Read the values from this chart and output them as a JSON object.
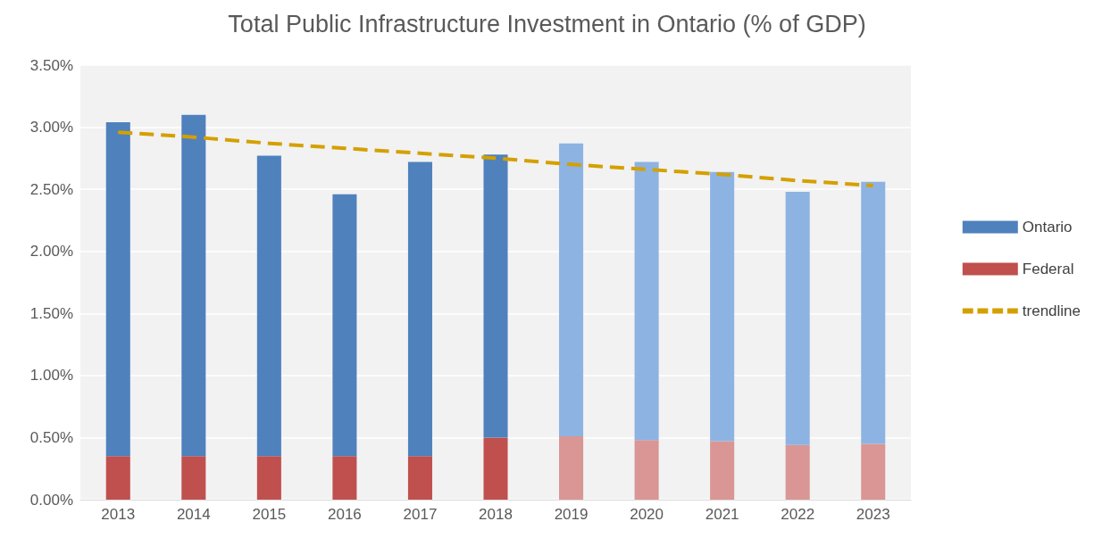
{
  "chart_data": {
    "type": "bar",
    "title": "Total Public Infrastructure Investment in Ontario (% of GDP)",
    "categories": [
      "2013",
      "2014",
      "2015",
      "2016",
      "2017",
      "2018",
      "2019",
      "2020",
      "2021",
      "2022",
      "2023"
    ],
    "stacked": true,
    "series": [
      {
        "name": "Federal",
        "color": "#c0504d",
        "colors": [
          "#c0504d",
          "#c0504d",
          "#c0504d",
          "#c0504d",
          "#c0504d",
          "#c0504d",
          "#d99694",
          "#d99694",
          "#d99694",
          "#d99694",
          "#d99694"
        ],
        "values": [
          0.35,
          0.35,
          0.35,
          0.35,
          0.35,
          0.5,
          0.51,
          0.48,
          0.47,
          0.44,
          0.45
        ]
      },
      {
        "name": "Ontario",
        "color": "#4f81bd",
        "colors": [
          "#4f81bd",
          "#4f81bd",
          "#4f81bd",
          "#4f81bd",
          "#4f81bd",
          "#4f81bd",
          "#8db3e2",
          "#8db3e2",
          "#8db3e2",
          "#8db3e2",
          "#8db3e2"
        ],
        "values": [
          2.69,
          2.75,
          2.42,
          2.11,
          2.37,
          2.28,
          2.36,
          2.24,
          2.17,
          2.04,
          2.11
        ]
      },
      {
        "name": "trendline",
        "type": "line",
        "color": "#d4a000",
        "line_style": "dashed",
        "marker": "none",
        "values": [
          2.96,
          2.92,
          2.87,
          2.83,
          2.79,
          2.75,
          2.7,
          2.66,
          2.62,
          2.57,
          2.53
        ]
      }
    ],
    "ylim": [
      0,
      3.5
    ],
    "yticks": [
      {
        "value": 0,
        "label": "0.00%"
      },
      {
        "value": 0.5,
        "label": "0.50%"
      },
      {
        "value": 1,
        "label": "1.00%"
      },
      {
        "value": 1.5,
        "label": "1.50%"
      },
      {
        "value": 2,
        "label": "2.00%"
      },
      {
        "value": 2.5,
        "label": "2.50%"
      },
      {
        "value": 3,
        "label": "3.00%"
      },
      {
        "value": 3.5,
        "label": "3.50%"
      }
    ],
    "grid": "y",
    "legend": "right"
  }
}
